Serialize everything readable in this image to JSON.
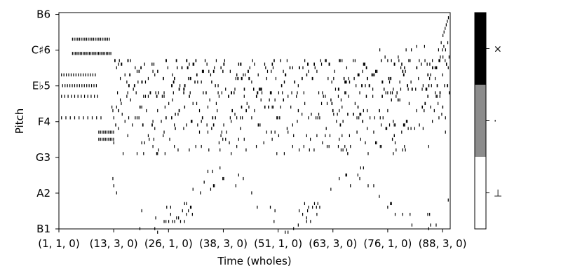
{
  "chart_data": {
    "type": "heatmap",
    "subtype": "piano-roll",
    "xlabel": "Time (wholes)",
    "ylabel": "Pitch",
    "x_ticks": [
      {
        "label": "(1, 1, 0)",
        "t": 0
      },
      {
        "label": "(13, 3, 0)",
        "t": 50
      },
      {
        "label": "(26, 1, 0)",
        "t": 100
      },
      {
        "label": "(38, 3, 0)",
        "t": 150
      },
      {
        "label": "(51, 1, 0)",
        "t": 200
      },
      {
        "label": "(63, 3, 0)",
        "t": 250
      },
      {
        "label": "(76, 1, 0)",
        "t": 300
      },
      {
        "label": "(88, 3, 0)",
        "t": 350
      }
    ],
    "x_range": [
      0,
      357
    ],
    "y_ticks": [
      {
        "label": "B1",
        "pitch": 35
      },
      {
        "label": "A2",
        "pitch": 45
      },
      {
        "label": "G3",
        "pitch": 55
      },
      {
        "label": "F4",
        "pitch": 65
      },
      {
        "label": "E♭5",
        "pitch": 75
      },
      {
        "label": "C♯6",
        "pitch": 85
      },
      {
        "label": "B6",
        "pitch": 95
      }
    ],
    "y_range": [
      35,
      95.5
    ],
    "colorbar": {
      "levels": [
        {
          "label": "⊥",
          "color": "#ffffff"
        },
        {
          "label": "·",
          "color": "#8c8c8c"
        },
        {
          "label": "×",
          "color": "#000000"
        }
      ]
    },
    "note_color": "#000000",
    "note_density": "dense",
    "grid": false,
    "legend": "colorbar-right"
  }
}
